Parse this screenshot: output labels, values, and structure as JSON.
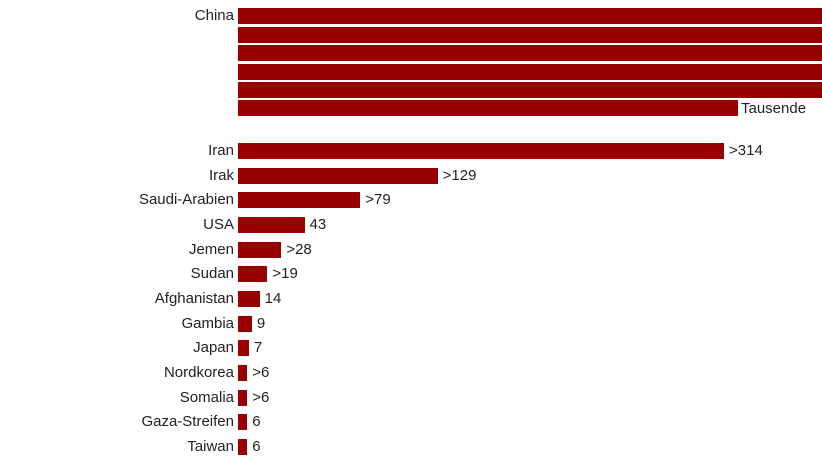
{
  "colors": {
    "bar": "#990000",
    "text": "#222222",
    "background": "#ffffff"
  },
  "china": {
    "label": "China",
    "value_label": "Tausende",
    "bar_count": 6
  },
  "chart_data": {
    "type": "bar",
    "orientation": "horizontal",
    "title": "",
    "xlabel": "",
    "ylabel": "",
    "categories": [
      "China",
      "Iran",
      "Irak",
      "Saudi-Arabien",
      "USA",
      "Jemen",
      "Sudan",
      "Afghanistan",
      "Gambia",
      "Japan",
      "Nordkorea",
      "Somalia",
      "Gaza-Streifen",
      "Taiwan"
    ],
    "values": [
      null,
      314,
      129,
      79,
      43,
      28,
      19,
      14,
      9,
      7,
      6,
      6,
      6,
      6
    ],
    "value_labels": [
      "Tausende",
      ">314",
      ">129",
      ">79",
      "43",
      ">28",
      ">19",
      "14",
      "9",
      "7",
      ">6",
      ">6",
      "6",
      "6"
    ],
    "grid": false,
    "legend": null
  },
  "rows": [
    {
      "label": "Iran",
      "value": 314,
      "value_label": ">314"
    },
    {
      "label": "Irak",
      "value": 129,
      "value_label": ">129"
    },
    {
      "label": "Saudi-Arabien",
      "value": 79,
      "value_label": ">79"
    },
    {
      "label": "USA",
      "value": 43,
      "value_label": "43"
    },
    {
      "label": "Jemen",
      "value": 28,
      "value_label": ">28"
    },
    {
      "label": "Sudan",
      "value": 19,
      "value_label": ">19"
    },
    {
      "label": "Afghanistan",
      "value": 14,
      "value_label": "14"
    },
    {
      "label": "Gambia",
      "value": 9,
      "value_label": "9"
    },
    {
      "label": "Japan",
      "value": 7,
      "value_label": "7"
    },
    {
      "label": "Nordkorea",
      "value": 6,
      "value_label": ">6"
    },
    {
      "label": "Somalia",
      "value": 6,
      "value_label": ">6"
    },
    {
      "label": "Gaza-Streifen",
      "value": 6,
      "value_label": "6"
    },
    {
      "label": "Taiwan",
      "value": 6,
      "value_label": "6"
    }
  ]
}
